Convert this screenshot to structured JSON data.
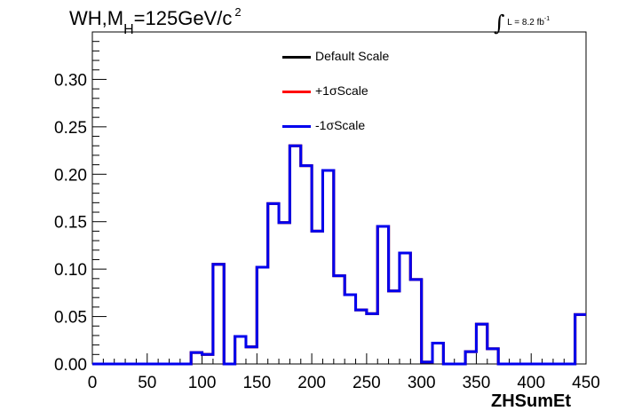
{
  "title": {
    "prefix": "WH,M",
    "subscript": "H",
    "main": "=125GeV/c",
    "superscript": "2"
  },
  "luminosity": {
    "integral": "∫",
    "text": "L = 8.2 fb",
    "superscript": "-1"
  },
  "chart_data": {
    "type": "line",
    "xlabel": "ZHSumEt",
    "ylabel": "",
    "xlim": [
      0,
      450
    ],
    "ylim": [
      0,
      0.35
    ],
    "x_ticks": [
      0,
      50,
      100,
      150,
      200,
      250,
      300,
      350,
      400,
      450
    ],
    "y_ticks": [
      0.0,
      0.05,
      0.1,
      0.15,
      0.2,
      0.25,
      0.3
    ],
    "bin_width": 10,
    "legend_position": "top-center",
    "series": [
      {
        "name": "Default Scale",
        "color": "#000000",
        "bin_edges_start": 0,
        "values": [
          0,
          0,
          0,
          0,
          0,
          0,
          0,
          0,
          0,
          0.012,
          0.01,
          0.105,
          0,
          0.029,
          0.018,
          0.102,
          0.169,
          0.149,
          0.23,
          0.209,
          0.14,
          0.204,
          0.093,
          0.073,
          0.057,
          0.053,
          0.145,
          0.077,
          0.117,
          0.089,
          0.002,
          0.022,
          0,
          0,
          0.013,
          0.042,
          0.016,
          0,
          0,
          0,
          0,
          0,
          0,
          0,
          0.052
        ]
      },
      {
        "name": "+1σScale",
        "color": "#ff0000",
        "bin_edges_start": 0,
        "values": [
          0,
          0,
          0,
          0,
          0,
          0,
          0,
          0,
          0,
          0.012,
          0.01,
          0.105,
          0,
          0.029,
          0.018,
          0.102,
          0.169,
          0.149,
          0.23,
          0.209,
          0.14,
          0.204,
          0.093,
          0.073,
          0.057,
          0.053,
          0.145,
          0.077,
          0.117,
          0.089,
          0.002,
          0.022,
          0,
          0,
          0.013,
          0.042,
          0.016,
          0,
          0,
          0,
          0,
          0,
          0,
          0,
          0.052
        ]
      },
      {
        "name": "-1σScale",
        "color": "#0000ee",
        "bin_edges_start": 0,
        "values": [
          0,
          0,
          0,
          0,
          0,
          0,
          0,
          0,
          0,
          0.012,
          0.01,
          0.105,
          0,
          0.029,
          0.018,
          0.102,
          0.169,
          0.149,
          0.23,
          0.209,
          0.14,
          0.204,
          0.093,
          0.073,
          0.057,
          0.053,
          0.145,
          0.077,
          0.117,
          0.089,
          0.002,
          0.022,
          0,
          0,
          0.013,
          0.042,
          0.016,
          0,
          0,
          0,
          0,
          0,
          0,
          0,
          0.052
        ]
      }
    ]
  }
}
